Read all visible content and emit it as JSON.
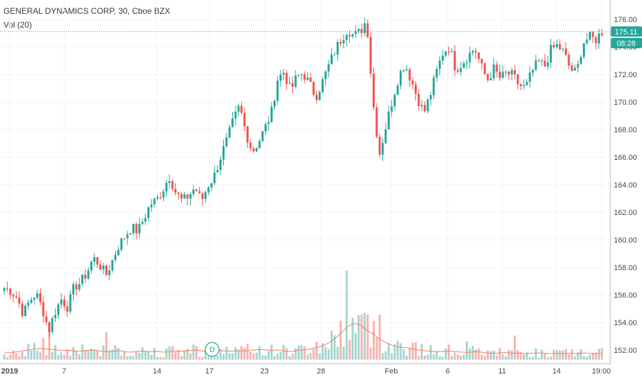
{
  "header": {
    "title": "GENERAL DYNAMICS CORP, 30, Cboe BZX",
    "indicator": "Vol (20)"
  },
  "colors": {
    "up": "#26a69a",
    "down": "#ef5350",
    "vol_up": "#a5d6d0",
    "vol_down": "#f5b4b2",
    "vol_ma": "#f08060",
    "last_price_tag": "#26a69a",
    "grid": "#f0f3fa",
    "axis": "#b2b5be"
  },
  "price_tags": {
    "last_price": "175.11",
    "countdown": "08:28"
  },
  "event_marker": "D",
  "chart_data": {
    "type": "candlestick",
    "title": "GENERAL DYNAMICS CORP, 30, Cboe BZX",
    "interval": "30",
    "ylim": [
      151,
      176.5
    ],
    "y_ticks": [
      "176.00",
      "174.00",
      "172.00",
      "170.00",
      "168.00",
      "166.00",
      "164.00",
      "162.00",
      "160.00",
      "158.00",
      "156.00",
      "154.00",
      "152.00"
    ],
    "x_ticks": [
      "2019",
      "7",
      "14",
      "17",
      "23",
      "28",
      "Feb",
      "6",
      "11",
      "14",
      "19:00"
    ],
    "grid": true,
    "last_price": 175.11,
    "volume_indicator": "Vol (20)",
    "close_path": [
      [
        156.5,
        156.3,
        155.8,
        154.6,
        155.6,
        156.1,
        155.0,
        153.4,
        154.8,
        155.7,
        155.1,
        156.6,
        156.9,
        157.6,
        158.7,
        158.2,
        157.4,
        158.5,
        159.6,
        160.3,
        160.9,
        160.6,
        161.6,
        162.6,
        162.9,
        163.7,
        164.6,
        163.4,
        162.8,
        163.2,
        163.8,
        162.8,
        163.9,
        164.6,
        166.0,
        167.2,
        168.6,
        169.7,
        167.8,
        166.4,
        167.1,
        168.1,
        169.2,
        171.7,
        172.2,
        170.8,
        171.8,
        172.1,
        171.3,
        170.4,
        171.4,
        172.6,
        173.7,
        174.6,
        175.3,
        174.8,
        175.1,
        176.0,
        170.0,
        166.2,
        168.2,
        170.1,
        171.8,
        172.8,
        171.6,
        170.3,
        169.2,
        170.5,
        172.2,
        173.6,
        174.0,
        172.4,
        172.8,
        173.4,
        173.9,
        172.6,
        171.6,
        172.4,
        171.7,
        172.1,
        171.9,
        171.2,
        171.0,
        172.2,
        172.9,
        172.6,
        173.8,
        174.1,
        173.6,
        172.4,
        172.1,
        174.3,
        174.7,
        174.5,
        175.11
      ]
    ],
    "vol_ma_path": [
      [
        1.8,
        1.9,
        2.1,
        2.3,
        2.6,
        2.9,
        3.0,
        2.8,
        2.6,
        2.4,
        2.5,
        2.3,
        2.2,
        2.4,
        2.6,
        2.3,
        2.1,
        2.2,
        2.4,
        2.1,
        2.0,
        2.2,
        2.3,
        2.1,
        2.2,
        2.0,
        2.1,
        2.3,
        2.2,
        2.4,
        2.6,
        2.3,
        2.2,
        2.1,
        2.4,
        2.3,
        2.2,
        2.4,
        2.3,
        2.5,
        2.7,
        2.6,
        2.4,
        2.6,
        2.3,
        2.1,
        2.4,
        2.6,
        2.8,
        3.2,
        3.6,
        4.4,
        5.6,
        7.0,
        8.8,
        9.6,
        9.2,
        7.8,
        6.8,
        5.4,
        4.6,
        3.8,
        3.4,
        3.2,
        3.0,
        2.6,
        2.4,
        2.2,
        2.1,
        2.2,
        2.3,
        2.1,
        2.0,
        1.9,
        2.1,
        2.0,
        1.8,
        1.7,
        1.8,
        1.9,
        1.7,
        1.8,
        1.6,
        1.7,
        1.8,
        1.7,
        1.6,
        1.7,
        1.6,
        1.7,
        1.6,
        1.8,
        1.7,
        1.6,
        1.7
      ]
    ]
  }
}
